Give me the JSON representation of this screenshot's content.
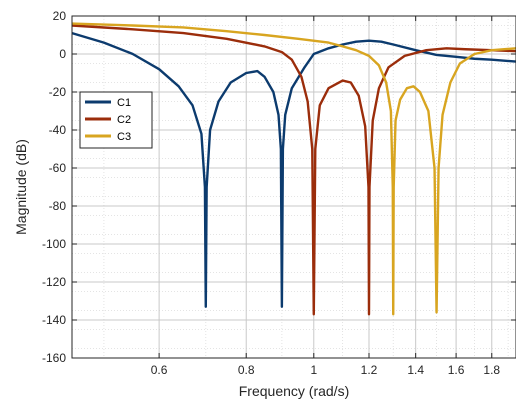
{
  "chart_data": {
    "type": "line",
    "title": "",
    "xlabel": "Frequency  (rad/s)",
    "ylabel": "Magnitude (dB)",
    "x_scale": "log",
    "xlim": [
      0.45,
      1.95
    ],
    "ylim": [
      -160,
      20
    ],
    "x_ticks": [
      0.6,
      0.8,
      1,
      1.2,
      1.4,
      1.6,
      1.8
    ],
    "x_tick_labels": [
      "0.6",
      "0.8",
      "1",
      "1.2",
      "1.4",
      "1.6",
      "1.8"
    ],
    "y_ticks": [
      20,
      0,
      -20,
      -40,
      -60,
      -80,
      -100,
      -120,
      -140,
      -160
    ],
    "y_tick_labels": [
      "20",
      "0",
      "-20",
      "-40",
      "-60",
      "-80",
      "-100",
      "-120",
      "-140",
      "-160"
    ],
    "grid": true,
    "minor_grid": true,
    "legend_position": "upper-left",
    "series": [
      {
        "name": "C1",
        "color": "#0c3b6e",
        "points": [
          [
            0.45,
            11
          ],
          [
            0.5,
            6
          ],
          [
            0.55,
            0
          ],
          [
            0.6,
            -8
          ],
          [
            0.64,
            -17
          ],
          [
            0.67,
            -27
          ],
          [
            0.69,
            -42
          ],
          [
            0.698,
            -70
          ],
          [
            0.7,
            -133
          ],
          [
            0.702,
            -70
          ],
          [
            0.71,
            -40
          ],
          [
            0.73,
            -25
          ],
          [
            0.76,
            -15
          ],
          [
            0.8,
            -10
          ],
          [
            0.83,
            -9
          ],
          [
            0.85,
            -12
          ],
          [
            0.875,
            -20
          ],
          [
            0.89,
            -32
          ],
          [
            0.897,
            -50
          ],
          [
            0.9,
            -133
          ],
          [
            0.903,
            -50
          ],
          [
            0.91,
            -32
          ],
          [
            0.93,
            -18
          ],
          [
            0.97,
            -7
          ],
          [
            1.0,
            0
          ],
          [
            1.05,
            3
          ],
          [
            1.1,
            5
          ],
          [
            1.15,
            6.5
          ],
          [
            1.2,
            7
          ],
          [
            1.25,
            6.5
          ],
          [
            1.3,
            5
          ],
          [
            1.4,
            2
          ],
          [
            1.5,
            -0.5
          ],
          [
            1.6,
            -1.5
          ],
          [
            1.7,
            -2.5
          ],
          [
            1.8,
            -3
          ],
          [
            1.95,
            -4
          ]
        ]
      },
      {
        "name": "C2",
        "color": "#9b2d0b",
        "points": [
          [
            0.45,
            15
          ],
          [
            0.55,
            13
          ],
          [
            0.65,
            11
          ],
          [
            0.75,
            8
          ],
          [
            0.85,
            4
          ],
          [
            0.9,
            1
          ],
          [
            0.93,
            -3
          ],
          [
            0.96,
            -12
          ],
          [
            0.98,
            -25
          ],
          [
            0.995,
            -50
          ],
          [
            1.0,
            -137
          ],
          [
            1.005,
            -50
          ],
          [
            1.02,
            -27
          ],
          [
            1.05,
            -18
          ],
          [
            1.1,
            -14
          ],
          [
            1.13,
            -15
          ],
          [
            1.16,
            -22
          ],
          [
            1.185,
            -38
          ],
          [
            1.198,
            -70
          ],
          [
            1.2,
            -137
          ],
          [
            1.202,
            -70
          ],
          [
            1.215,
            -35
          ],
          [
            1.24,
            -18
          ],
          [
            1.28,
            -7
          ],
          [
            1.35,
            -1
          ],
          [
            1.45,
            2
          ],
          [
            1.55,
            3
          ],
          [
            1.65,
            2.5
          ],
          [
            1.8,
            2
          ],
          [
            1.95,
            1.5
          ]
        ]
      },
      {
        "name": "C3",
        "color": "#d8a520",
        "points": [
          [
            0.45,
            16
          ],
          [
            0.55,
            15
          ],
          [
            0.65,
            14
          ],
          [
            0.75,
            12
          ],
          [
            0.85,
            10
          ],
          [
            0.95,
            8
          ],
          [
            1.05,
            6
          ],
          [
            1.1,
            4
          ],
          [
            1.15,
            2
          ],
          [
            1.2,
            -1
          ],
          [
            1.24,
            -6
          ],
          [
            1.27,
            -15
          ],
          [
            1.29,
            -30
          ],
          [
            1.298,
            -70
          ],
          [
            1.3,
            -137
          ],
          [
            1.302,
            -70
          ],
          [
            1.31,
            -35
          ],
          [
            1.33,
            -24
          ],
          [
            1.36,
            -18
          ],
          [
            1.39,
            -17
          ],
          [
            1.42,
            -20
          ],
          [
            1.46,
            -30
          ],
          [
            1.49,
            -60
          ],
          [
            1.5,
            -136
          ],
          [
            1.51,
            -60
          ],
          [
            1.53,
            -32
          ],
          [
            1.57,
            -15
          ],
          [
            1.62,
            -5
          ],
          [
            1.7,
            0
          ],
          [
            1.8,
            2
          ],
          [
            1.95,
            3
          ]
        ]
      }
    ]
  }
}
